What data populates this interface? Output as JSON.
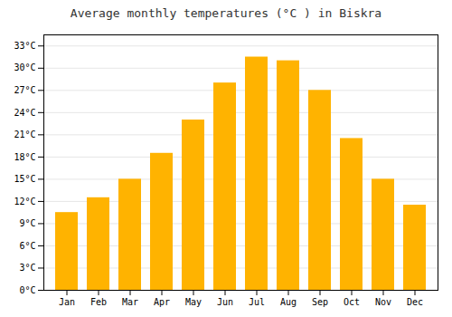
{
  "chart_data": {
    "type": "bar",
    "title": "Average monthly temperatures (°C ) in Biskra",
    "categories": [
      "Jan",
      "Feb",
      "Mar",
      "Apr",
      "May",
      "Jun",
      "Jul",
      "Aug",
      "Sep",
      "Oct",
      "Nov",
      "Dec"
    ],
    "values": [
      10.5,
      12.5,
      15.0,
      18.5,
      23.0,
      28.0,
      31.5,
      31.0,
      27.0,
      20.5,
      15.0,
      11.5
    ],
    "color": "#FFB300",
    "ylim": [
      0,
      34.5
    ],
    "yticks": [
      {
        "value": 0,
        "label": "0°C"
      },
      {
        "value": 3,
        "label": "3°C"
      },
      {
        "value": 6,
        "label": "6°C"
      },
      {
        "value": 9,
        "label": "9°C"
      },
      {
        "value": 12,
        "label": "12°C"
      },
      {
        "value": 15,
        "label": "15°C"
      },
      {
        "value": 18,
        "label": "18°C"
      },
      {
        "value": 21,
        "label": "21°C"
      },
      {
        "value": 24,
        "label": "24°C"
      },
      {
        "value": 27,
        "label": "27°C"
      },
      {
        "value": 30,
        "label": "30°C"
      },
      {
        "value": 33,
        "label": "33°C"
      }
    ],
    "grid": true
  }
}
